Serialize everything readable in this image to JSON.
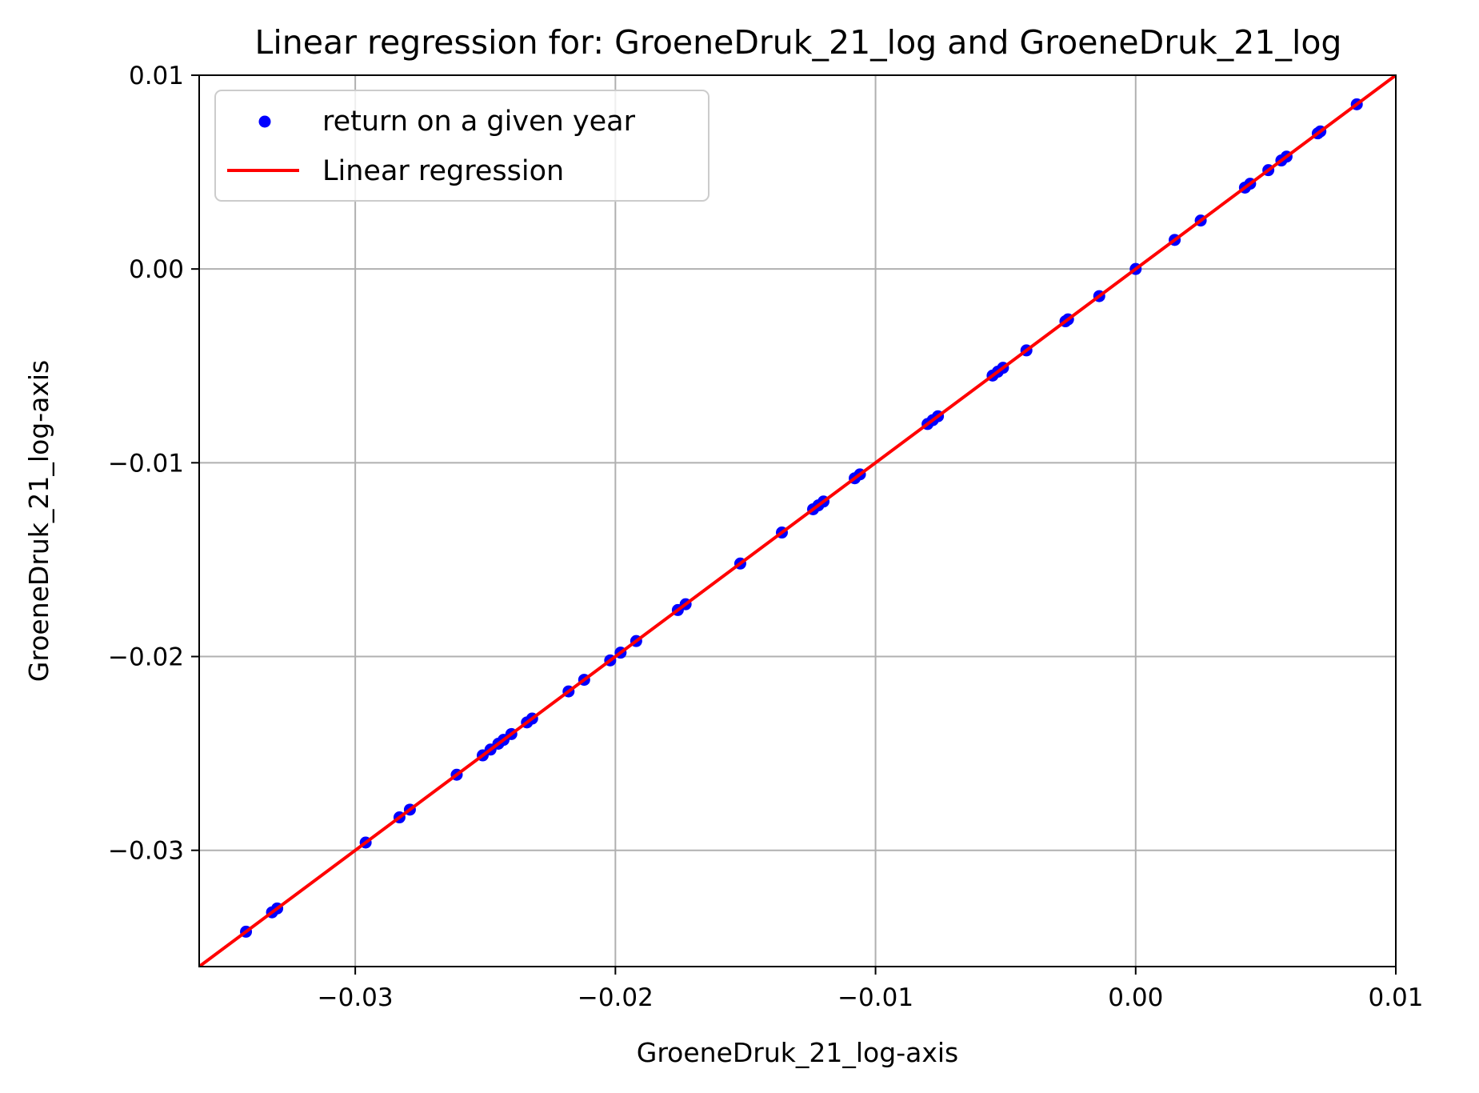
{
  "chart_data": {
    "type": "scatter",
    "title": "Linear regression for: GroeneDruk_21_log and GroeneDruk_21_log",
    "xlabel": "GroeneDruk_21_log-axis",
    "ylabel": "GroeneDruk_21_log-axis",
    "xlim": [
      -0.036,
      0.01
    ],
    "ylim": [
      -0.036,
      0.01
    ],
    "x_ticks": [
      -0.03,
      -0.02,
      -0.01,
      0.0,
      0.01
    ],
    "x_tick_labels": [
      "−0.03",
      "−0.02",
      "−0.01",
      "0.00",
      "0.01"
    ],
    "y_ticks": [
      -0.03,
      -0.02,
      -0.01,
      0.0,
      0.01
    ],
    "y_tick_labels": [
      "−0.03",
      "−0.02",
      "−0.01",
      "0.00",
      "0.01"
    ],
    "grid": true,
    "legend_position": "top-left",
    "legend": [
      {
        "label": "return on a given year",
        "kind": "marker",
        "color": "#0000ff"
      },
      {
        "label": "Linear regression",
        "kind": "line",
        "color": "#ff0000"
      }
    ],
    "series": [
      {
        "name": "return on a given year",
        "kind": "scatter",
        "color": "#0000ff",
        "x": [
          -0.0342,
          -0.0332,
          -0.033,
          -0.0296,
          -0.0283,
          -0.0279,
          -0.0261,
          -0.0251,
          -0.0248,
          -0.0245,
          -0.0243,
          -0.024,
          -0.0234,
          -0.0232,
          -0.0218,
          -0.0212,
          -0.0202,
          -0.0198,
          -0.0192,
          -0.0176,
          -0.0173,
          -0.0152,
          -0.0136,
          -0.0124,
          -0.0122,
          -0.012,
          -0.0108,
          -0.0106,
          -0.008,
          -0.0078,
          -0.0076,
          -0.0055,
          -0.0053,
          -0.0051,
          -0.0042,
          -0.0027,
          -0.0026,
          -0.0014,
          0.0,
          0.0015,
          0.0025,
          0.0042,
          0.0044,
          0.0051,
          0.0056,
          0.0058,
          0.007,
          0.0071,
          0.0085
        ],
        "y": [
          -0.0342,
          -0.0332,
          -0.033,
          -0.0296,
          -0.0283,
          -0.0279,
          -0.0261,
          -0.0251,
          -0.0248,
          -0.0245,
          -0.0243,
          -0.024,
          -0.0234,
          -0.0232,
          -0.0218,
          -0.0212,
          -0.0202,
          -0.0198,
          -0.0192,
          -0.0176,
          -0.0173,
          -0.0152,
          -0.0136,
          -0.0124,
          -0.0122,
          -0.012,
          -0.0108,
          -0.0106,
          -0.008,
          -0.0078,
          -0.0076,
          -0.0055,
          -0.0053,
          -0.0051,
          -0.0042,
          -0.0027,
          -0.0026,
          -0.0014,
          0.0,
          0.0015,
          0.0025,
          0.0042,
          0.0044,
          0.0051,
          0.0056,
          0.0058,
          0.007,
          0.0071,
          0.0085
        ]
      },
      {
        "name": "Linear regression",
        "kind": "line",
        "color": "#ff0000",
        "x": [
          -0.036,
          0.0102
        ],
        "y": [
          -0.036,
          0.0102
        ]
      }
    ]
  }
}
